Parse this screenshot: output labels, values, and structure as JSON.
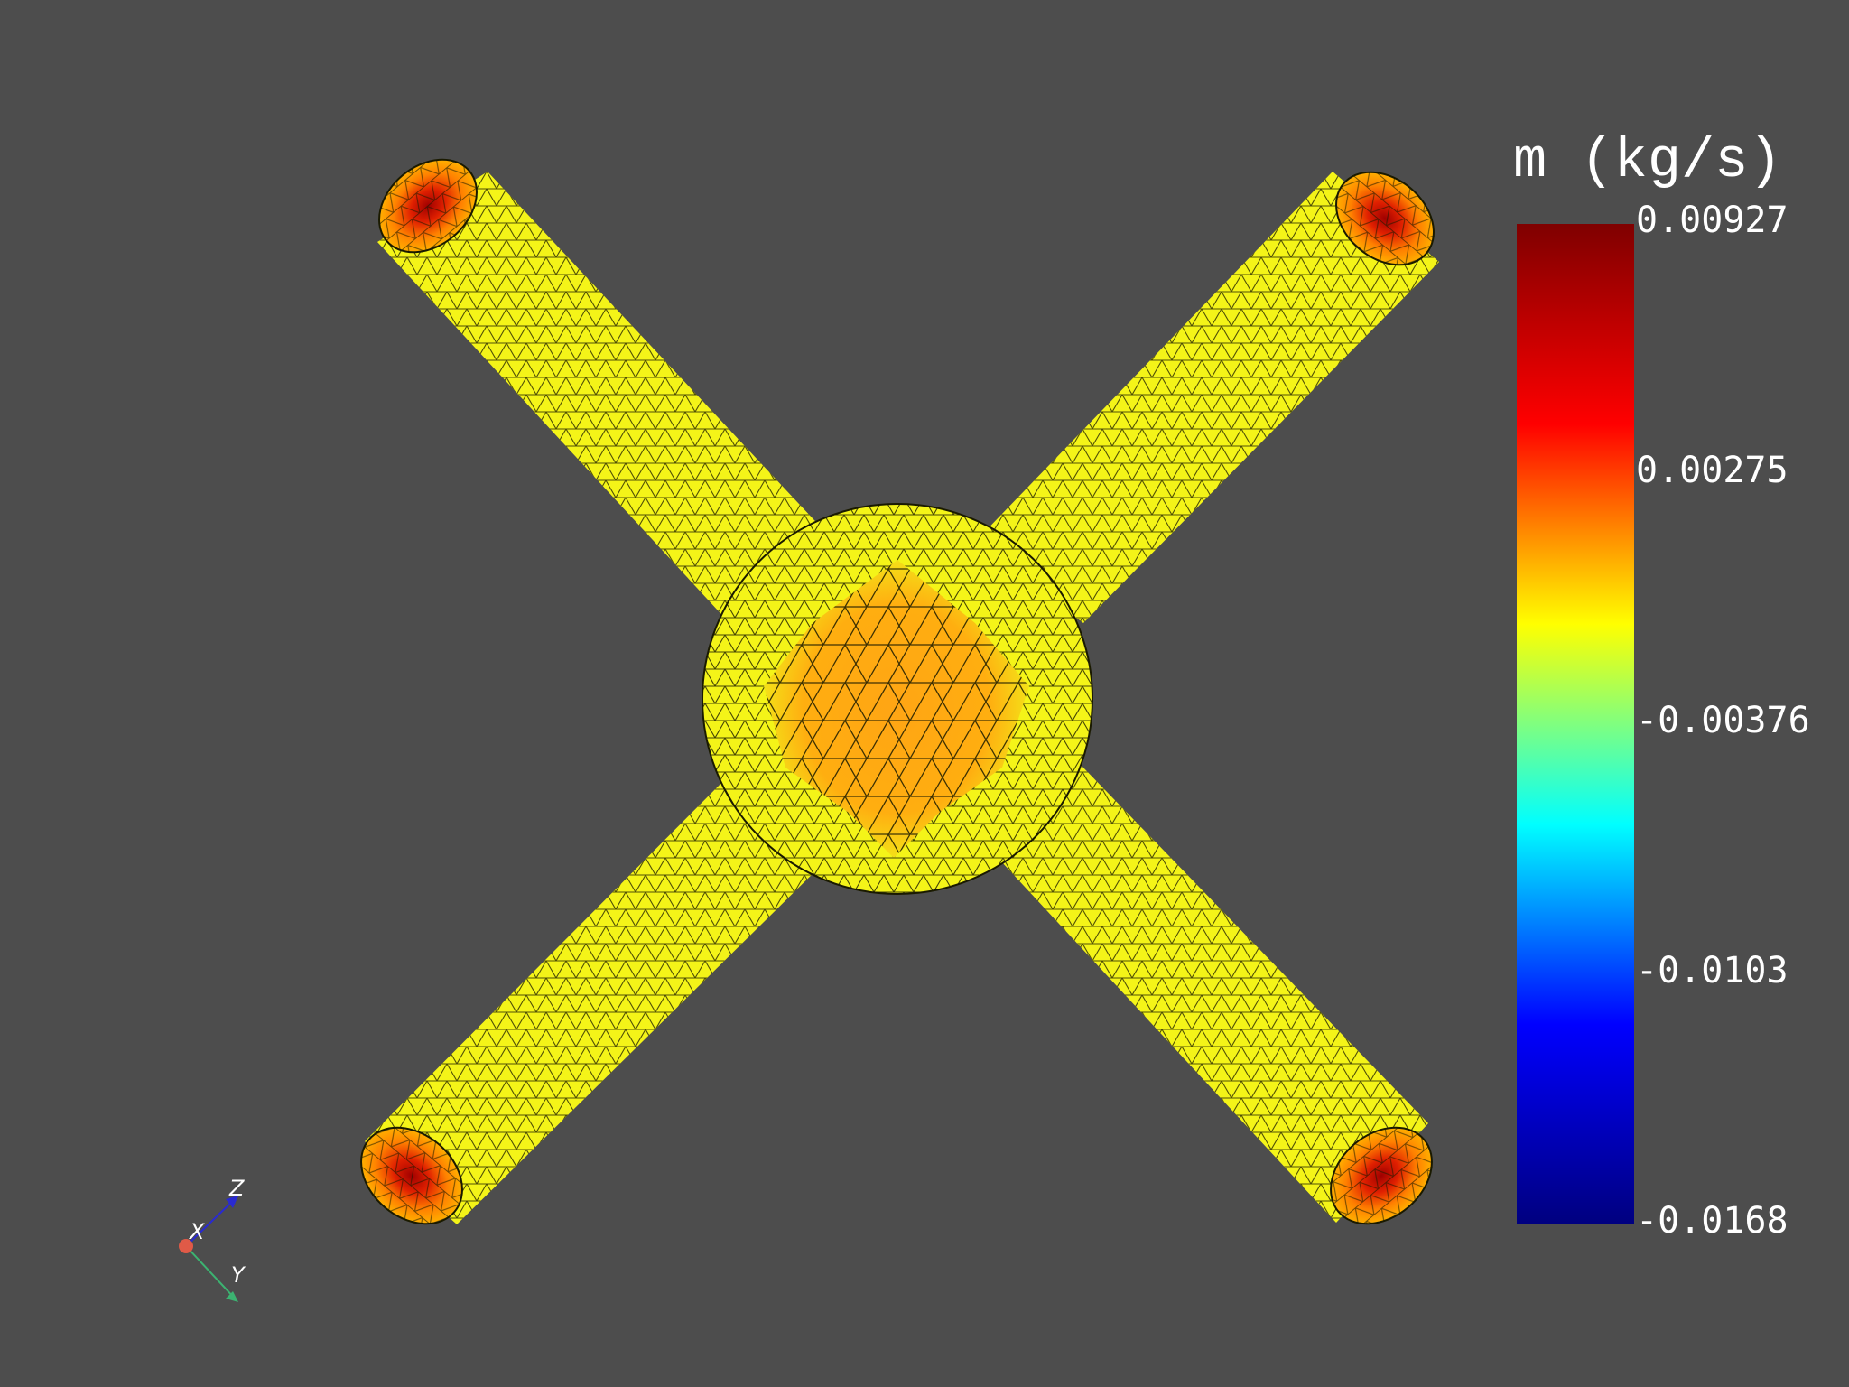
{
  "scalar_bar": {
    "title": "m (kg/s)",
    "ticks": [
      "0.00927",
      "0.00275",
      "-0.00376",
      "-0.0103",
      "-0.0168"
    ],
    "range": [
      -0.0168,
      0.00927
    ],
    "colormap": "jet",
    "colors": [
      "#00007f",
      "#0000ff",
      "#00ffff",
      "#ffff00",
      "#ff0000",
      "#7f0000"
    ]
  },
  "orientation_axes": {
    "x_label": "X",
    "y_label": "Y",
    "z_label": "Z",
    "x_color": "#e05a47",
    "y_color": "#3cb371",
    "z_color": "#2a2ad0"
  },
  "mesh": {
    "surface_color": "#f4f418",
    "center_color": "#ffa514",
    "outlet_color": "#ff7a00",
    "outlet_core_color": "#c00000",
    "edge_color": "#1a1a00",
    "background": "#4d4d4d"
  }
}
